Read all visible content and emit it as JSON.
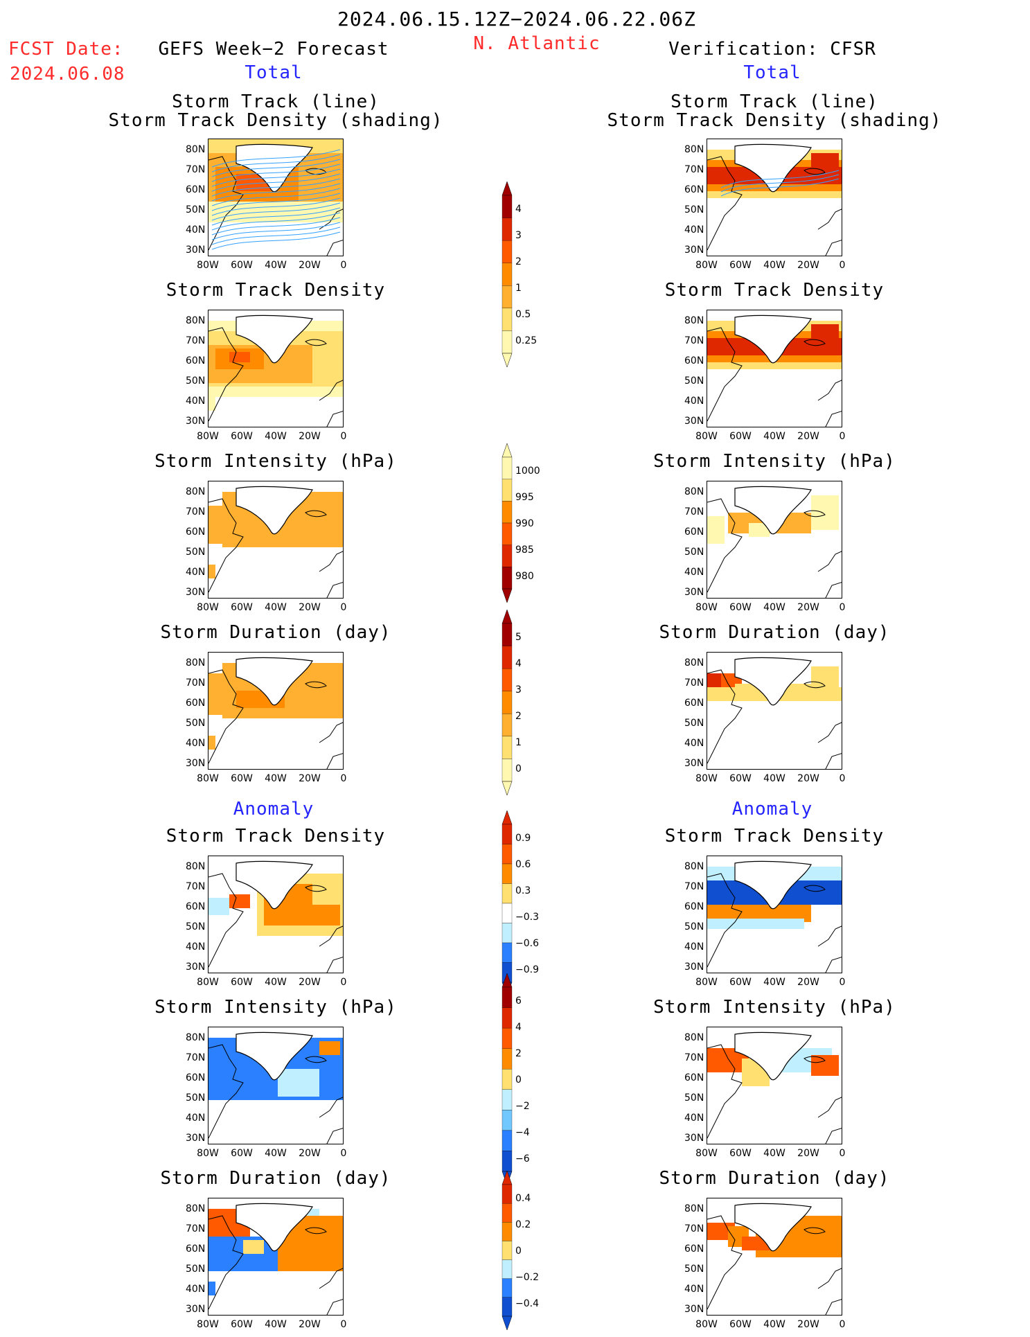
{
  "header": {
    "period": "2024.06.15.12Z−2024.06.22.06Z",
    "region": "N. Atlantic",
    "fcst_label": "FCST Date:",
    "fcst_date": "2024.06.08",
    "left_title": "GEFS Week−2 Forecast",
    "right_title": "Verification: CFSR",
    "total_label": "Total",
    "anomaly_label": "Anomaly"
  },
  "panel_titles": {
    "track_line": "Storm Track (line)",
    "track_density_shading": "Storm Track Density (shading)",
    "track_density": "Storm Track Density",
    "intensity": "Storm Intensity (hPa)",
    "duration": "Storm Duration (day)"
  },
  "axes": {
    "lat_ticks": [
      "80N",
      "70N",
      "60N",
      "50N",
      "40N",
      "30N"
    ],
    "lon_ticks": [
      "80W",
      "60W",
      "40W",
      "20W",
      "0"
    ]
  },
  "colorbars": {
    "density": [
      "4",
      "3",
      "2",
      "1",
      "0.5",
      "0.25"
    ],
    "intensity": [
      "1000",
      "995",
      "990",
      "985",
      "980"
    ],
    "duration": [
      "5",
      "4",
      "3",
      "2",
      "1",
      "0"
    ],
    "density_anom": [
      "0.9",
      "0.6",
      "0.3",
      "−0.3",
      "−0.6",
      "−0.9"
    ],
    "intensity_anom": [
      "6",
      "4",
      "2",
      "0",
      "−2",
      "−4",
      "−6"
    ],
    "duration_anom": [
      "0.4",
      "0.2",
      "0",
      "−0.2",
      "−0.4"
    ]
  },
  "colors": {
    "title_red": "#ff2a2a",
    "label_blue": "#2424ff",
    "track_line": "#33a0ff",
    "warm": [
      "#fff8b0",
      "#ffe070",
      "#ffb030",
      "#ff8c00",
      "#ff5a00",
      "#e02800",
      "#a00000"
    ],
    "cool": [
      "#c0f0ff",
      "#70c8ff",
      "#2a80ff",
      "#1050d0"
    ]
  }
}
